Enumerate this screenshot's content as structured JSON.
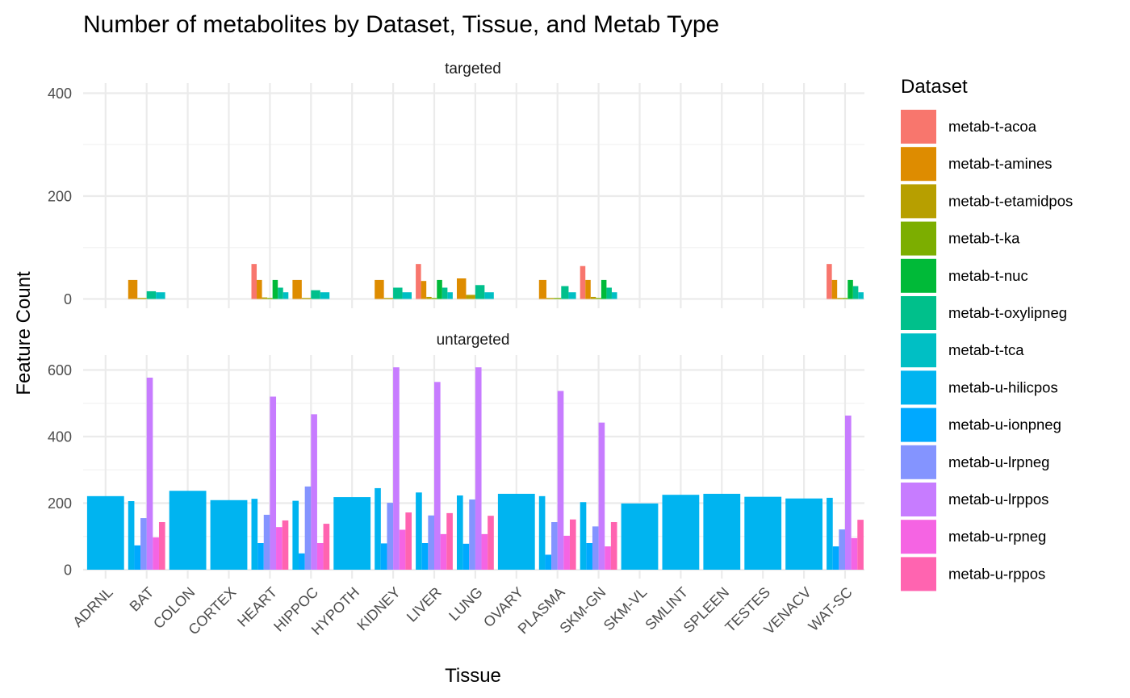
{
  "chart_data": {
    "type": "bar",
    "title": "Number of metabolites by Dataset, Tissue, and Metab Type",
    "xlabel": "Tissue",
    "ylabel": "Feature Count",
    "ylim": [
      0,
      640
    ],
    "yticks": [
      0,
      200,
      400,
      600
    ],
    "grid": true,
    "legend": {
      "title": "Dataset",
      "position": "right"
    },
    "categories": [
      "ADRNL",
      "BAT",
      "COLON",
      "CORTEX",
      "HEART",
      "HIPPOC",
      "HYPOTH",
      "KIDNEY",
      "LIVER",
      "LUNG",
      "OVARY",
      "PLASMA",
      "SKM-GN",
      "SKM-VL",
      "SMLINT",
      "SPLEEN",
      "TESTES",
      "VENACV",
      "WAT-SC"
    ],
    "datasets": [
      {
        "name": "metab-t-acoa",
        "color": "#F8766D"
      },
      {
        "name": "metab-t-amines",
        "color": "#DE8C00"
      },
      {
        "name": "metab-t-etamidpos",
        "color": "#B79F00"
      },
      {
        "name": "metab-t-ka",
        "color": "#7CAE00"
      },
      {
        "name": "metab-t-nuc",
        "color": "#00BA38"
      },
      {
        "name": "metab-t-oxylipneg",
        "color": "#00C08B"
      },
      {
        "name": "metab-t-tca",
        "color": "#00BFC4"
      },
      {
        "name": "metab-u-hilicpos",
        "color": "#00B4F0"
      },
      {
        "name": "metab-u-ionpneg",
        "color": "#00A9FF"
      },
      {
        "name": "metab-u-lrpneg",
        "color": "#8494FF"
      },
      {
        "name": "metab-u-lrppos",
        "color": "#C77CFF"
      },
      {
        "name": "metab-u-rpneg",
        "color": "#F564E3"
      },
      {
        "name": "metab-u-rppos",
        "color": "#FF64B0"
      }
    ],
    "facets": [
      {
        "name": "targeted",
        "bars": {
          "BAT": {
            "metab-t-amines": 37,
            "metab-t-etamidpos": 2,
            "metab-t-oxylipneg": 15,
            "metab-t-tca": 13
          },
          "HEART": {
            "metab-t-acoa": 68,
            "metab-t-amines": 37,
            "metab-t-etamidpos": 3,
            "metab-t-ka": 2,
            "metab-t-nuc": 37,
            "metab-t-oxylipneg": 22,
            "metab-t-tca": 13
          },
          "HIPPOC": {
            "metab-t-amines": 37,
            "metab-t-etamidpos": 2,
            "metab-t-oxylipneg": 17,
            "metab-t-tca": 13
          },
          "KIDNEY": {
            "metab-t-amines": 37,
            "metab-t-etamidpos": 2,
            "metab-t-oxylipneg": 22,
            "metab-t-tca": 13
          },
          "LIVER": {
            "metab-t-acoa": 68,
            "metab-t-amines": 35,
            "metab-t-etamidpos": 4,
            "metab-t-ka": 2,
            "metab-t-nuc": 37,
            "metab-t-oxylipneg": 22,
            "metab-t-tca": 13
          },
          "LUNG": {
            "metab-t-amines": 40,
            "metab-t-etamidpos": 8,
            "metab-t-oxylipneg": 27,
            "metab-t-tca": 13
          },
          "PLASMA": {
            "metab-t-amines": 37,
            "metab-t-etamidpos": 2,
            "metab-t-ka": 2,
            "metab-t-oxylipneg": 25,
            "metab-t-tca": 13
          },
          "SKM-GN": {
            "metab-t-acoa": 64,
            "metab-t-amines": 37,
            "metab-t-etamidpos": 4,
            "metab-t-ka": 2,
            "metab-t-nuc": 37,
            "metab-t-oxylipneg": 22,
            "metab-t-tca": 13
          },
          "WAT-SC": {
            "metab-t-acoa": 68,
            "metab-t-amines": 37,
            "metab-t-etamidpos": 2,
            "metab-t-ka": 2,
            "metab-t-nuc": 37,
            "metab-t-oxylipneg": 25,
            "metab-t-tca": 13
          }
        }
      },
      {
        "name": "untargeted",
        "bars": {
          "ADRNL": {
            "metab-u-hilicpos": 221
          },
          "BAT": {
            "metab-u-hilicpos": 206,
            "metab-u-ionpneg": 73,
            "metab-u-lrpneg": 155,
            "metab-u-lrppos": 577,
            "metab-u-rpneg": 97,
            "metab-u-rppos": 143
          },
          "COLON": {
            "metab-u-hilicpos": 237
          },
          "CORTEX": {
            "metab-u-hilicpos": 209
          },
          "HEART": {
            "metab-u-hilicpos": 213,
            "metab-u-ionpneg": 80,
            "metab-u-lrpneg": 165,
            "metab-u-lrppos": 520,
            "metab-u-rpneg": 128,
            "metab-u-rppos": 148
          },
          "HIPPOC": {
            "metab-u-hilicpos": 207,
            "metab-u-ionpneg": 49,
            "metab-u-lrpneg": 250,
            "metab-u-lrppos": 467,
            "metab-u-rpneg": 80,
            "metab-u-rppos": 138
          },
          "HYPOTH": {
            "metab-u-hilicpos": 218
          },
          "KIDNEY": {
            "metab-u-hilicpos": 245,
            "metab-u-ionpneg": 79,
            "metab-u-lrpneg": 201,
            "metab-u-lrppos": 608,
            "metab-u-rpneg": 120,
            "metab-u-rppos": 172
          },
          "LIVER": {
            "metab-u-hilicpos": 232,
            "metab-u-ionpneg": 80,
            "metab-u-lrpneg": 163,
            "metab-u-lrppos": 564,
            "metab-u-rpneg": 107,
            "metab-u-rppos": 170
          },
          "LUNG": {
            "metab-u-hilicpos": 223,
            "metab-u-ionpneg": 78,
            "metab-u-lrpneg": 211,
            "metab-u-lrppos": 608,
            "metab-u-rpneg": 107,
            "metab-u-rppos": 162
          },
          "OVARY": {
            "metab-u-hilicpos": 228
          },
          "PLASMA": {
            "metab-u-hilicpos": 221,
            "metab-u-ionpneg": 45,
            "metab-u-lrpneg": 143,
            "metab-u-lrppos": 537,
            "metab-u-rpneg": 102,
            "metab-u-rppos": 151
          },
          "SKM-GN": {
            "metab-u-hilicpos": 203,
            "metab-u-ionpneg": 80,
            "metab-u-lrpneg": 130,
            "metab-u-lrppos": 442,
            "metab-u-rpneg": 70,
            "metab-u-rppos": 143
          },
          "SKM-VL": {
            "metab-u-hilicpos": 199
          },
          "SMLINT": {
            "metab-u-hilicpos": 225
          },
          "SPLEEN": {
            "metab-u-hilicpos": 228
          },
          "TESTES": {
            "metab-u-hilicpos": 219
          },
          "VENACV": {
            "metab-u-hilicpos": 214
          },
          "WAT-SC": {
            "metab-u-hilicpos": 216,
            "metab-u-ionpneg": 70,
            "metab-u-lrpneg": 121,
            "metab-u-lrppos": 463,
            "metab-u-rpneg": 95,
            "metab-u-rppos": 150
          }
        }
      }
    ]
  }
}
